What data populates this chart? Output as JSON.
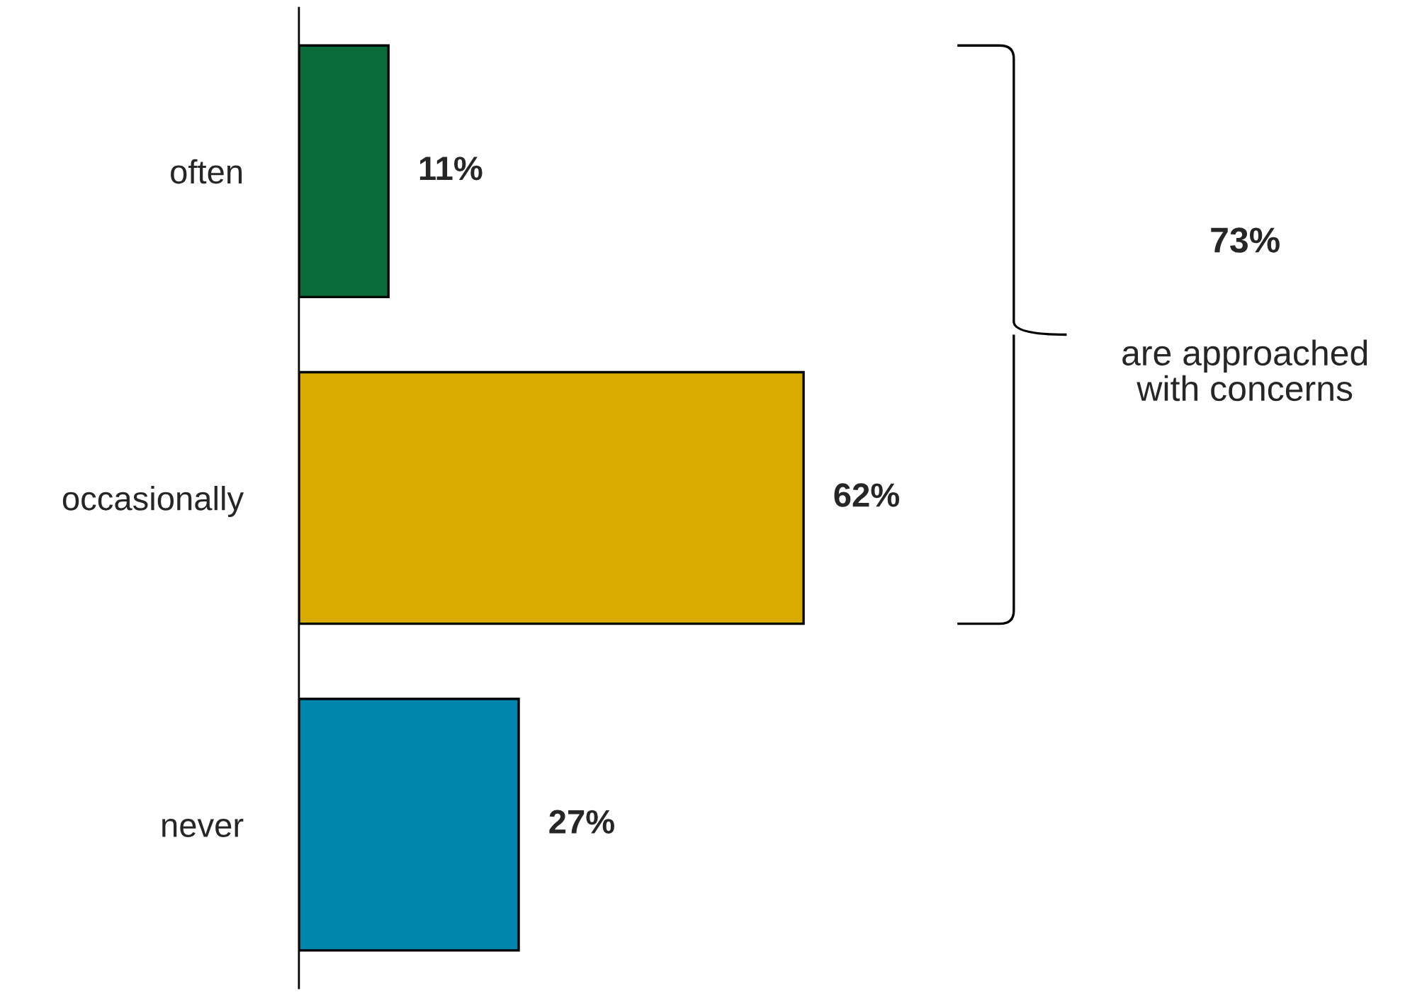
{
  "chart_data": {
    "type": "bar",
    "orientation": "horizontal",
    "categories": [
      "often",
      "occasionally",
      "never"
    ],
    "values": [
      11,
      62,
      27
    ],
    "colors": [
      "#0a6b3a",
      "#d9ab00",
      "#0086ad"
    ],
    "value_labels": [
      "11%",
      "62%",
      "27%"
    ],
    "annotations": [
      "73%",
      "are approached\nwith concerns"
    ],
    "grid": false,
    "legend": false
  }
}
